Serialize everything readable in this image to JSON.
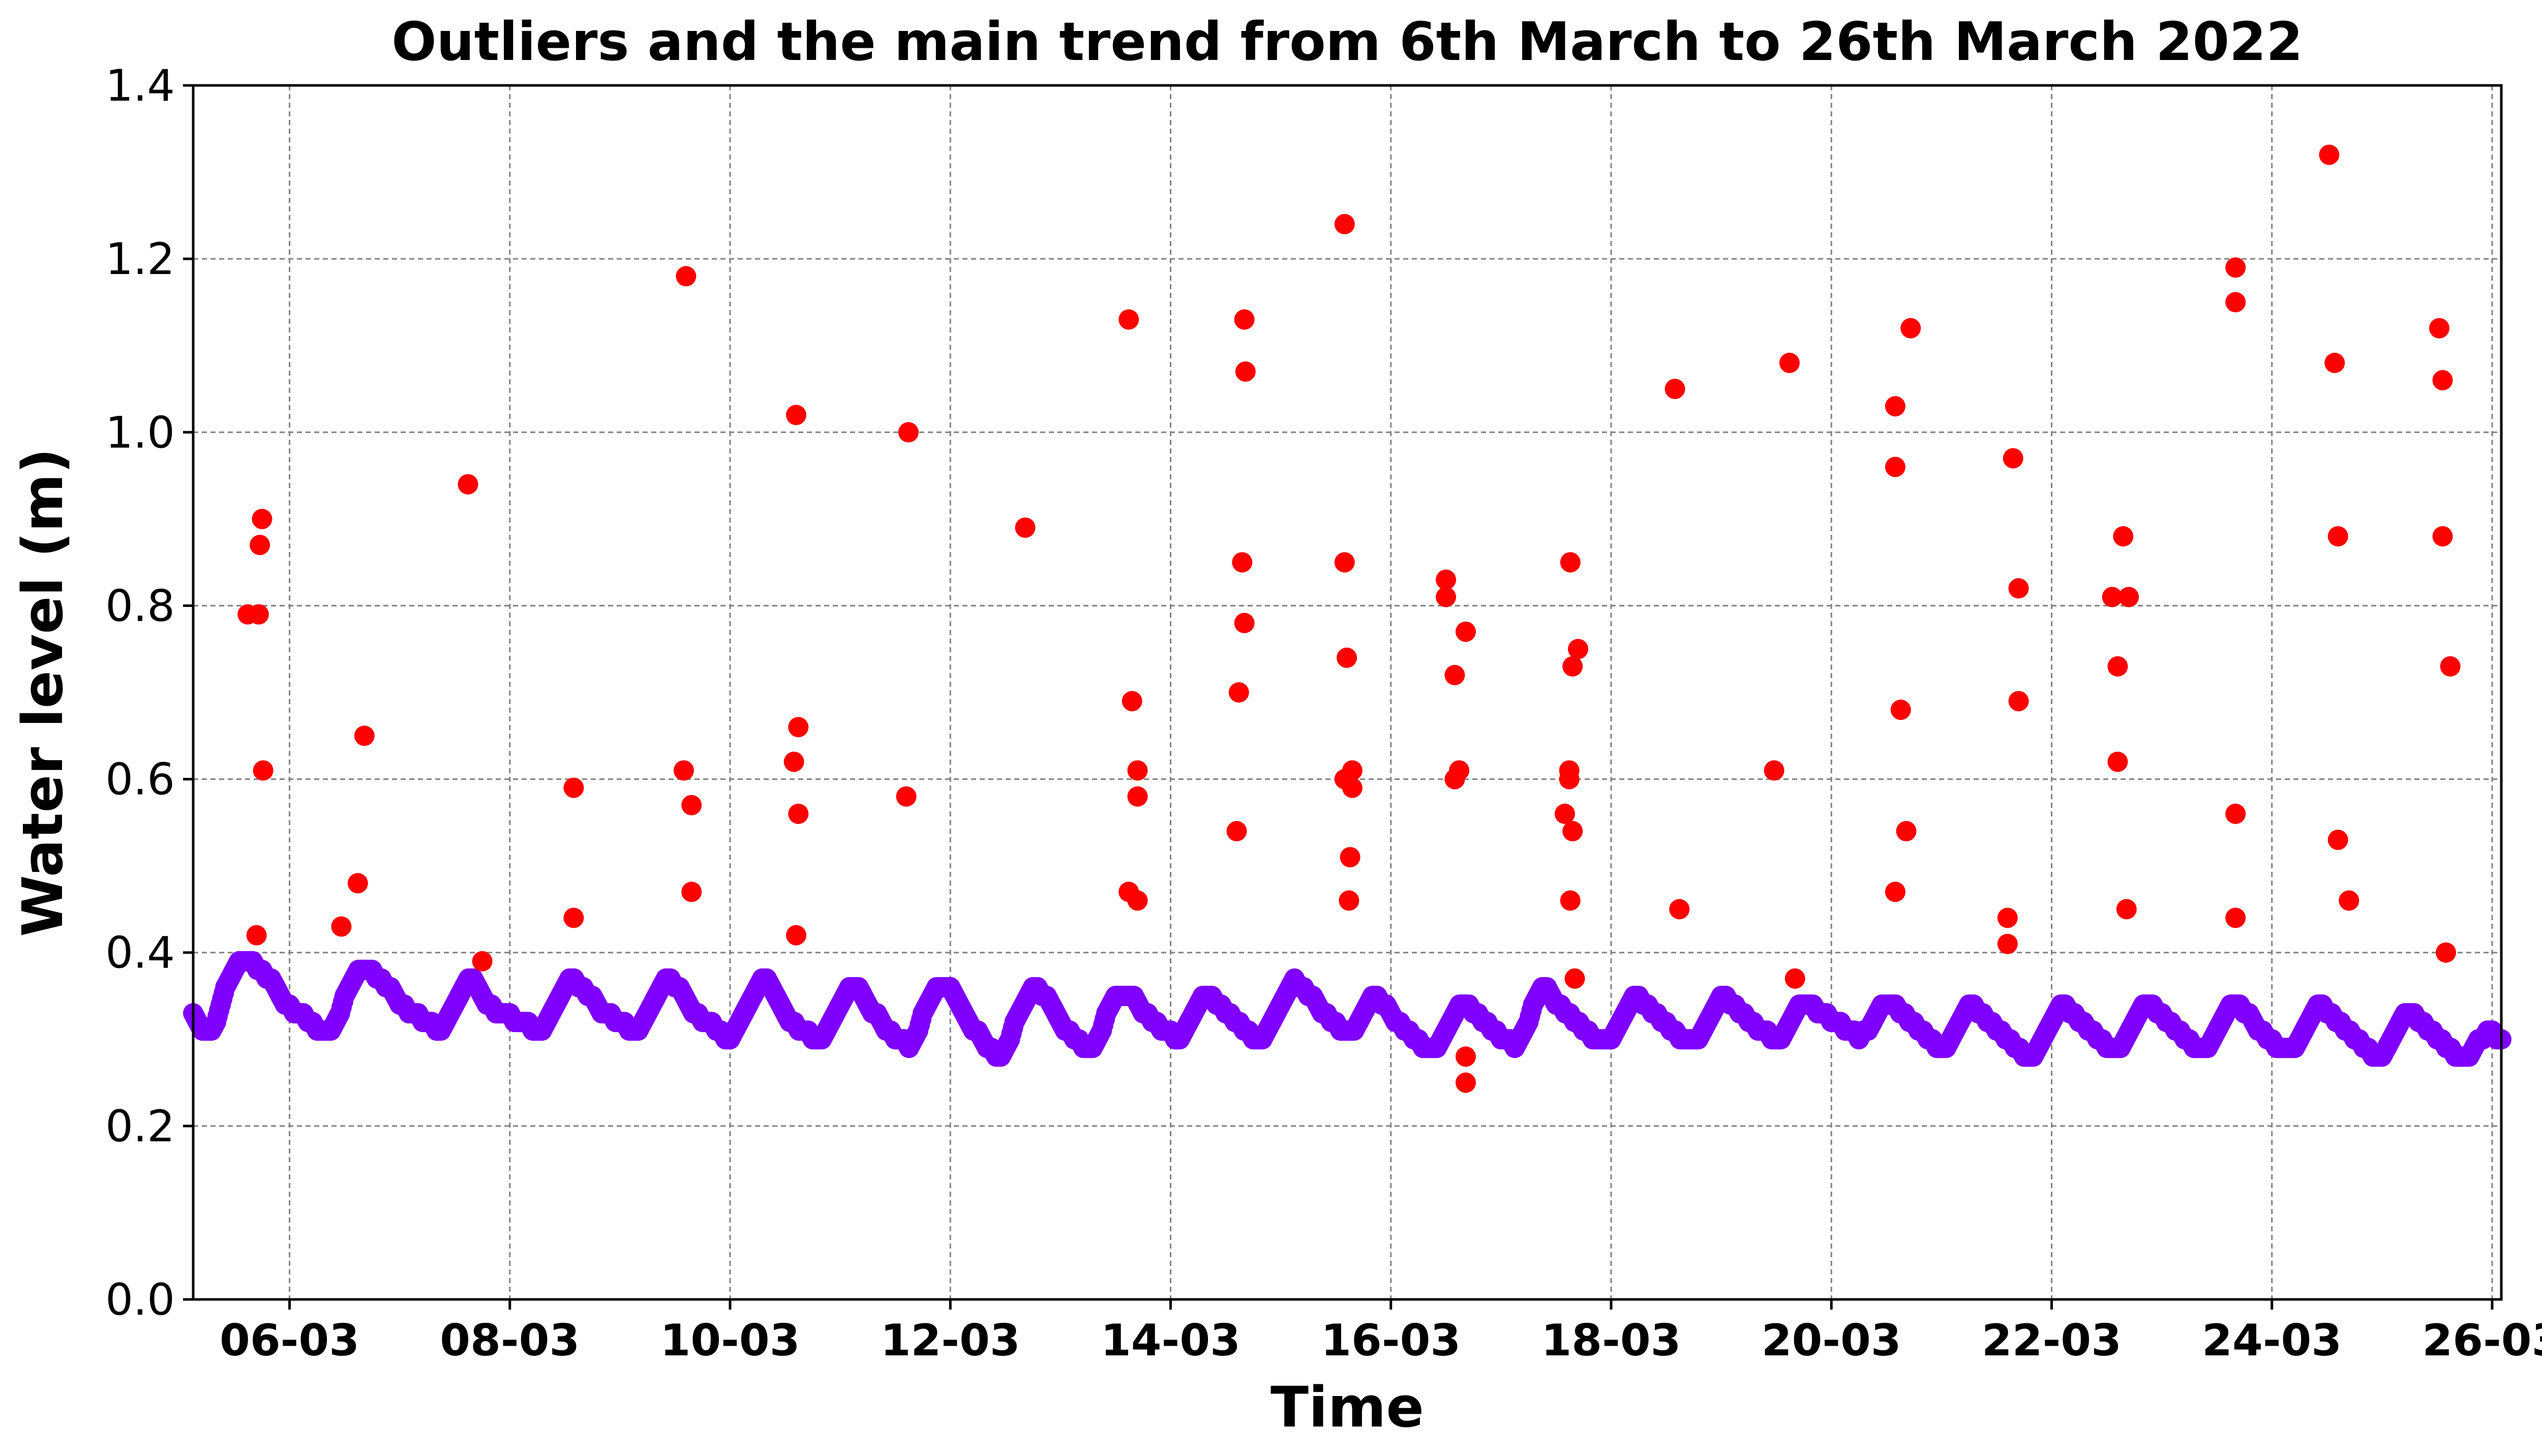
{
  "chart_data": {
    "type": "scatter",
    "title": "Outliers and the main trend from 6th March to 26th March 2022",
    "xlabel": "Time",
    "ylabel": "Water level (m)",
    "xlim": [
      "2022-03-05T03:00",
      "2022-03-26T02:00"
    ],
    "ylim": [
      0.0,
      1.4
    ],
    "yticks": [
      "0.0",
      "0.2",
      "0.4",
      "0.6",
      "0.8",
      "1.0",
      "1.2",
      "1.4"
    ],
    "xticks": [
      "06-03",
      "08-03",
      "10-03",
      "12-03",
      "14-03",
      "16-03",
      "18-03",
      "20-03",
      "22-03",
      "24-03",
      "26-03"
    ],
    "grid": true,
    "colors": {
      "outliers": "#ff0000",
      "trend": "#7f00ff"
    },
    "series": [
      {
        "marker": "dot",
        "values_day_of_march_and_level": [
          [
            5.62,
            0.79
          ],
          [
            5.72,
            0.79
          ],
          [
            5.7,
            0.42
          ],
          [
            5.73,
            0.87
          ],
          [
            5.75,
            0.9
          ],
          [
            5.76,
            0.61
          ],
          [
            6.47,
            0.43
          ],
          [
            6.62,
            0.48
          ],
          [
            6.68,
            0.65
          ],
          [
            7.62,
            0.94
          ],
          [
            7.75,
            0.39
          ],
          [
            8.58,
            0.59
          ],
          [
            8.58,
            0.44
          ],
          [
            9.6,
            1.18
          ],
          [
            9.58,
            0.61
          ],
          [
            9.65,
            0.57
          ],
          [
            9.65,
            0.47
          ],
          [
            10.6,
            1.02
          ],
          [
            10.58,
            0.62
          ],
          [
            10.62,
            0.66
          ],
          [
            10.62,
            0.56
          ],
          [
            10.6,
            0.42
          ],
          [
            11.62,
            1.0
          ],
          [
            11.6,
            0.58
          ],
          [
            12.68,
            0.89
          ],
          [
            13.62,
            1.13
          ],
          [
            13.65,
            0.69
          ],
          [
            13.7,
            0.61
          ],
          [
            13.7,
            0.58
          ],
          [
            13.62,
            0.47
          ],
          [
            13.7,
            0.46
          ],
          [
            14.67,
            1.13
          ],
          [
            14.68,
            1.07
          ],
          [
            14.65,
            0.85
          ],
          [
            14.67,
            0.78
          ],
          [
            14.62,
            0.7
          ],
          [
            14.6,
            0.54
          ],
          [
            15.58,
            1.24
          ],
          [
            15.58,
            0.85
          ],
          [
            15.6,
            0.74
          ],
          [
            15.58,
            0.6
          ],
          [
            15.65,
            0.61
          ],
          [
            15.65,
            0.59
          ],
          [
            15.63,
            0.51
          ],
          [
            15.62,
            0.46
          ],
          [
            16.5,
            0.83
          ],
          [
            16.5,
            0.81
          ],
          [
            16.58,
            0.72
          ],
          [
            16.62,
            0.61
          ],
          [
            16.58,
            0.6
          ],
          [
            16.68,
            0.77
          ],
          [
            16.68,
            0.28
          ],
          [
            16.68,
            0.25
          ],
          [
            17.63,
            0.85
          ],
          [
            17.7,
            0.75
          ],
          [
            17.65,
            0.73
          ],
          [
            17.62,
            0.61
          ],
          [
            17.62,
            0.6
          ],
          [
            17.58,
            0.56
          ],
          [
            17.65,
            0.54
          ],
          [
            17.63,
            0.46
          ],
          [
            17.67,
            0.37
          ],
          [
            18.58,
            1.05
          ],
          [
            18.62,
            0.45
          ],
          [
            19.62,
            1.08
          ],
          [
            19.48,
            0.61
          ],
          [
            19.67,
            0.37
          ],
          [
            20.58,
            1.03
          ],
          [
            20.58,
            0.96
          ],
          [
            20.63,
            0.68
          ],
          [
            20.68,
            0.54
          ],
          [
            20.58,
            0.47
          ],
          [
            20.72,
            1.12
          ],
          [
            21.65,
            0.97
          ],
          [
            21.7,
            0.82
          ],
          [
            21.7,
            0.69
          ],
          [
            21.6,
            0.44
          ],
          [
            21.6,
            0.41
          ],
          [
            22.65,
            0.88
          ],
          [
            22.55,
            0.81
          ],
          [
            22.7,
            0.81
          ],
          [
            22.6,
            0.73
          ],
          [
            22.6,
            0.62
          ],
          [
            22.68,
            0.45
          ],
          [
            23.67,
            1.19
          ],
          [
            23.67,
            1.15
          ],
          [
            23.67,
            0.56
          ],
          [
            23.67,
            0.44
          ],
          [
            24.52,
            1.32
          ],
          [
            24.57,
            1.08
          ],
          [
            24.6,
            0.88
          ],
          [
            24.6,
            0.53
          ],
          [
            24.7,
            0.46
          ],
          [
            25.52,
            1.12
          ],
          [
            25.55,
            1.06
          ],
          [
            25.55,
            0.88
          ],
          [
            25.62,
            0.73
          ],
          [
            25.58,
            0.4
          ]
        ]
      },
      {
        "marker": "dense-dot-trend",
        "values_hourly_from_day_5_03h": [
          0.33,
          0.32,
          0.31,
          0.31,
          0.31,
          0.32,
          0.34,
          0.36,
          0.37,
          0.38,
          0.39,
          0.39,
          0.39,
          0.39,
          0.38,
          0.38,
          0.37,
          0.37,
          0.36,
          0.35,
          0.34,
          0.34,
          0.33,
          0.33,
          0.33,
          0.32,
          0.32,
          0.31,
          0.31,
          0.31,
          0.31,
          0.32,
          0.33,
          0.35,
          0.36,
          0.37,
          0.38,
          0.38,
          0.38,
          0.38,
          0.37,
          0.37,
          0.36,
          0.36,
          0.35,
          0.34,
          0.34,
          0.33,
          0.33,
          0.33,
          0.32,
          0.32,
          0.32,
          0.31,
          0.31,
          0.32,
          0.33,
          0.34,
          0.35,
          0.36,
          0.37,
          0.37,
          0.36,
          0.35,
          0.34,
          0.34,
          0.33,
          0.33,
          0.33,
          0.33,
          0.32,
          0.32,
          0.32,
          0.32,
          0.31,
          0.31,
          0.31,
          0.32,
          0.33,
          0.34,
          0.35,
          0.36,
          0.37,
          0.37,
          0.36,
          0.36,
          0.35,
          0.35,
          0.34,
          0.33,
          0.33,
          0.33,
          0.32,
          0.32,
          0.32,
          0.31,
          0.31,
          0.31,
          0.32,
          0.33,
          0.34,
          0.35,
          0.36,
          0.37,
          0.37,
          0.36,
          0.36,
          0.35,
          0.34,
          0.33,
          0.33,
          0.32,
          0.32,
          0.32,
          0.31,
          0.31,
          0.3,
          0.3,
          0.31,
          0.32,
          0.33,
          0.34,
          0.35,
          0.36,
          0.37,
          0.37,
          0.36,
          0.35,
          0.34,
          0.33,
          0.32,
          0.32,
          0.31,
          0.31,
          0.31,
          0.3,
          0.3,
          0.3,
          0.31,
          0.32,
          0.33,
          0.34,
          0.35,
          0.36,
          0.36,
          0.36,
          0.35,
          0.34,
          0.33,
          0.33,
          0.32,
          0.31,
          0.31,
          0.3,
          0.3,
          0.3,
          0.29,
          0.3,
          0.31,
          0.33,
          0.34,
          0.35,
          0.36,
          0.36,
          0.36,
          0.36,
          0.35,
          0.34,
          0.33,
          0.32,
          0.31,
          0.31,
          0.3,
          0.29,
          0.29,
          0.28,
          0.28,
          0.29,
          0.3,
          0.32,
          0.33,
          0.34,
          0.35,
          0.36,
          0.36,
          0.35,
          0.35,
          0.34,
          0.33,
          0.32,
          0.31,
          0.31,
          0.3,
          0.3,
          0.29,
          0.29,
          0.29,
          0.3,
          0.31,
          0.33,
          0.34,
          0.35,
          0.35,
          0.35,
          0.35,
          0.35,
          0.34,
          0.33,
          0.33,
          0.32,
          0.32,
          0.31,
          0.31,
          0.31,
          0.3,
          0.3,
          0.31,
          0.32,
          0.33,
          0.34,
          0.35,
          0.35,
          0.35,
          0.34,
          0.34,
          0.33,
          0.33,
          0.32,
          0.32,
          0.31,
          0.31,
          0.3,
          0.3,
          0.3,
          0.31,
          0.32,
          0.33,
          0.34,
          0.35,
          0.36,
          0.37,
          0.36,
          0.36,
          0.35,
          0.35,
          0.34,
          0.33,
          0.33,
          0.32,
          0.32,
          0.31,
          0.31,
          0.31,
          0.31,
          0.32,
          0.33,
          0.34,
          0.35,
          0.35,
          0.34,
          0.34,
          0.33,
          0.32,
          0.32,
          0.31,
          0.31,
          0.3,
          0.3,
          0.29,
          0.29,
          0.29,
          0.29,
          0.3,
          0.31,
          0.32,
          0.33,
          0.34,
          0.34,
          0.34,
          0.33,
          0.33,
          0.32,
          0.32,
          0.31,
          0.31,
          0.3,
          0.3,
          0.3,
          0.29,
          0.3,
          0.31,
          0.32,
          0.34,
          0.35,
          0.36,
          0.36,
          0.35,
          0.34,
          0.34,
          0.33,
          0.33,
          0.32,
          0.32,
          0.31,
          0.31,
          0.3,
          0.3,
          0.3,
          0.3,
          0.3,
          0.31,
          0.32,
          0.33,
          0.34,
          0.35,
          0.35,
          0.34,
          0.34,
          0.33,
          0.33,
          0.32,
          0.32,
          0.31,
          0.31,
          0.3,
          0.3,
          0.3,
          0.3,
          0.3,
          0.31,
          0.32,
          0.33,
          0.34,
          0.35,
          0.35,
          0.34,
          0.34,
          0.33,
          0.33,
          0.32,
          0.32,
          0.31,
          0.31,
          0.31,
          0.3,
          0.3,
          0.3,
          0.31,
          0.32,
          0.33,
          0.34,
          0.34,
          0.34,
          0.34,
          0.33,
          0.33,
          0.33,
          0.32,
          0.32,
          0.32,
          0.31,
          0.31,
          0.31,
          0.3,
          0.31,
          0.31,
          0.32,
          0.33,
          0.34,
          0.34,
          0.34,
          0.34,
          0.33,
          0.33,
          0.32,
          0.32,
          0.31,
          0.31,
          0.3,
          0.3,
          0.29,
          0.29,
          0.29,
          0.3,
          0.31,
          0.32,
          0.33,
          0.34,
          0.34,
          0.33,
          0.33,
          0.32,
          0.32,
          0.31,
          0.31,
          0.3,
          0.3,
          0.29,
          0.29,
          0.28,
          0.28,
          0.28,
          0.29,
          0.3,
          0.31,
          0.32,
          0.33,
          0.34,
          0.34,
          0.33,
          0.33,
          0.32,
          0.32,
          0.31,
          0.31,
          0.3,
          0.3,
          0.29,
          0.29,
          0.29,
          0.29,
          0.3,
          0.31,
          0.32,
          0.33,
          0.34,
          0.34,
          0.34,
          0.33,
          0.33,
          0.32,
          0.32,
          0.31,
          0.31,
          0.3,
          0.3,
          0.29,
          0.29,
          0.29,
          0.29,
          0.3,
          0.31,
          0.32,
          0.33,
          0.34,
          0.34,
          0.34,
          0.33,
          0.33,
          0.32,
          0.31,
          0.31,
          0.3,
          0.3,
          0.29,
          0.29,
          0.29,
          0.29,
          0.29,
          0.3,
          0.31,
          0.32,
          0.33,
          0.34,
          0.34,
          0.33,
          0.33,
          0.32,
          0.32,
          0.31,
          0.31,
          0.3,
          0.3,
          0.29,
          0.29,
          0.28,
          0.28,
          0.28,
          0.29,
          0.3,
          0.31,
          0.32,
          0.33,
          0.33,
          0.33,
          0.32,
          0.32,
          0.31,
          0.31,
          0.3,
          0.3,
          0.29,
          0.29,
          0.28,
          0.28,
          0.28,
          0.28,
          0.29,
          0.3,
          0.3,
          0.31,
          0.31,
          0.3,
          0.3,
          0.29,
          0.29,
          0.28,
          0.28,
          0.28,
          0.28,
          0.28,
          0.28,
          0.28,
          0.28,
          0.28,
          0.29,
          0.29,
          0.3,
          0.3,
          0.3,
          0.3,
          0.3,
          0.29,
          0.29,
          0.29,
          0.29,
          0.29,
          0.28,
          0.28,
          0.28
        ]
      }
    ]
  }
}
